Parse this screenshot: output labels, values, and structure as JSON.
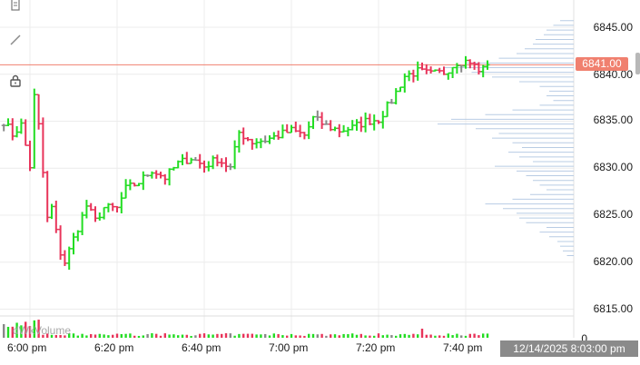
{
  "toolbar": {
    "tools": [
      {
        "name": "note-icon"
      },
      {
        "name": "pencil-icon"
      },
      {
        "name": "lock-icon"
      }
    ]
  },
  "price_axis": {
    "labels": [
      "6845.00",
      "6840.00",
      "6835.00",
      "6830.00",
      "6825.00",
      "6820.00",
      "6815.00"
    ],
    "current_price": "6841.00"
  },
  "volume_axis": {
    "label": "0"
  },
  "volume_panel": {
    "label": "dWkVolume"
  },
  "time_axis": {
    "labels": [
      "6:00 pm",
      "6:20 pm",
      "6:40 pm",
      "7:00 pm",
      "7:20 pm",
      "7:40 pm"
    ],
    "crosshair_time": "12/14/2025 8:03:00 pm"
  },
  "colors": {
    "up": "#22dd22",
    "down": "#e8345a",
    "neutral": "#888888",
    "profile": "#b8cce4",
    "grid": "#ececec",
    "price_line": "#f0806f"
  },
  "chart_data": {
    "type": "ohlc",
    "instrument": "",
    "interval_minutes": 1,
    "ylim": [
      6814,
      6849
    ],
    "y_ticks": [
      6845,
      6840,
      6835,
      6830,
      6825,
      6820,
      6815
    ],
    "x_ticks": [
      "6:00 pm",
      "6:20 pm",
      "6:40 pm",
      "7:00 pm",
      "7:20 pm",
      "7:40 pm"
    ],
    "current_price": 6841.0,
    "anchors": [
      {
        "t": -6,
        "p": 6835.0
      },
      {
        "t": -4,
        "p": 6833.6
      },
      {
        "t": -2,
        "p": 6834.6
      },
      {
        "t": 0,
        "p": 6830.2
      },
      {
        "t": 1,
        "p": 6837.6
      },
      {
        "t": 2,
        "p": 6834.5
      },
      {
        "t": 3,
        "p": 6829.5
      },
      {
        "t": 4,
        "p": 6824.6
      },
      {
        "t": 5,
        "p": 6825.8
      },
      {
        "t": 6,
        "p": 6823.2
      },
      {
        "t": 7,
        "p": 6821.0
      },
      {
        "t": 8,
        "p": 6820.0
      },
      {
        "t": 10,
        "p": 6822.5
      },
      {
        "t": 13,
        "p": 6826.0
      },
      {
        "t": 15,
        "p": 6824.4
      },
      {
        "t": 17,
        "p": 6825.8
      },
      {
        "t": 20,
        "p": 6825.7
      },
      {
        "t": 22,
        "p": 6827.8
      },
      {
        "t": 25,
        "p": 6828.5
      },
      {
        "t": 28,
        "p": 6829.8
      },
      {
        "t": 31,
        "p": 6829.0
      },
      {
        "t": 34,
        "p": 6830.5
      },
      {
        "t": 37,
        "p": 6831.1
      },
      {
        "t": 40,
        "p": 6830.2
      },
      {
        "t": 43,
        "p": 6831.0
      },
      {
        "t": 46,
        "p": 6830.0
      },
      {
        "t": 48,
        "p": 6833.8
      },
      {
        "t": 51,
        "p": 6832.8
      },
      {
        "t": 54,
        "p": 6833.0
      },
      {
        "t": 57,
        "p": 6833.5
      },
      {
        "t": 60,
        "p": 6834.0
      },
      {
        "t": 63,
        "p": 6833.5
      },
      {
        "t": 65,
        "p": 6835.3
      },
      {
        "t": 68,
        "p": 6834.5
      },
      {
        "t": 71,
        "p": 6834.0
      },
      {
        "t": 74,
        "p": 6834.3
      },
      {
        "t": 77,
        "p": 6835.0
      },
      {
        "t": 80,
        "p": 6835.2
      },
      {
        "t": 83,
        "p": 6837.2
      },
      {
        "t": 86,
        "p": 6839.8
      },
      {
        "t": 89,
        "p": 6840.3
      },
      {
        "t": 92,
        "p": 6840.0
      },
      {
        "t": 95,
        "p": 6840.2
      },
      {
        "t": 98,
        "p": 6841.3
      },
      {
        "t": 101,
        "p": 6841.4
      },
      {
        "t": 103,
        "p": 6840.3
      },
      {
        "t": 105,
        "p": 6841.0
      }
    ],
    "volume_profile": [
      {
        "price": 6845.7,
        "volume": 0.1
      },
      {
        "price": 6845.2,
        "volume": 0.15
      },
      {
        "price": 6844.7,
        "volume": 0.2
      },
      {
        "price": 6844.2,
        "volume": 0.22
      },
      {
        "price": 6843.7,
        "volume": 0.28
      },
      {
        "price": 6843.2,
        "volume": 0.3
      },
      {
        "price": 6842.7,
        "volume": 0.36
      },
      {
        "price": 6842.2,
        "volume": 0.42
      },
      {
        "price": 6841.7,
        "volume": 0.55
      },
      {
        "price": 6841.2,
        "volume": 0.8
      },
      {
        "price": 6840.7,
        "volume": 0.95
      },
      {
        "price": 6840.2,
        "volume": 0.75
      },
      {
        "price": 6839.7,
        "volume": 0.6
      },
      {
        "price": 6839.2,
        "volume": 0.4
      },
      {
        "price": 6838.7,
        "volume": 0.25
      },
      {
        "price": 6838.2,
        "volume": 0.18
      },
      {
        "price": 6837.7,
        "volume": 0.2
      },
      {
        "price": 6837.2,
        "volume": 0.15
      },
      {
        "price": 6836.7,
        "volume": 0.25
      },
      {
        "price": 6836.2,
        "volume": 0.45
      },
      {
        "price": 6835.7,
        "volume": 0.65
      },
      {
        "price": 6835.2,
        "volume": 0.9
      },
      {
        "price": 6834.7,
        "volume": 1.0
      },
      {
        "price": 6834.2,
        "volume": 0.72
      },
      {
        "price": 6833.7,
        "volume": 0.55
      },
      {
        "price": 6833.2,
        "volume": 0.6
      },
      {
        "price": 6832.7,
        "volume": 0.45
      },
      {
        "price": 6832.2,
        "volume": 0.38
      },
      {
        "price": 6831.7,
        "volume": 0.48
      },
      {
        "price": 6831.2,
        "volume": 0.4
      },
      {
        "price": 6830.7,
        "volume": 0.3
      },
      {
        "price": 6830.2,
        "volume": 0.58
      },
      {
        "price": 6829.7,
        "volume": 0.42
      },
      {
        "price": 6829.2,
        "volume": 0.35
      },
      {
        "price": 6828.7,
        "volume": 0.3
      },
      {
        "price": 6828.2,
        "volume": 0.25
      },
      {
        "price": 6827.7,
        "volume": 0.2
      },
      {
        "price": 6827.2,
        "volume": 0.32
      },
      {
        "price": 6826.7,
        "volume": 0.45
      },
      {
        "price": 6826.2,
        "volume": 0.65
      },
      {
        "price": 6825.7,
        "volume": 0.52
      },
      {
        "price": 6825.2,
        "volume": 0.42
      },
      {
        "price": 6824.7,
        "volume": 0.4
      },
      {
        "price": 6824.2,
        "volume": 0.35
      },
      {
        "price": 6823.7,
        "volume": 0.2
      },
      {
        "price": 6823.2,
        "volume": 0.25
      },
      {
        "price": 6822.7,
        "volume": 0.18
      },
      {
        "price": 6822.2,
        "volume": 0.12
      },
      {
        "price": 6821.7,
        "volume": 0.1
      },
      {
        "price": 6821.2,
        "volume": 0.08
      },
      {
        "price": 6820.7,
        "volume": 0.05
      }
    ]
  }
}
